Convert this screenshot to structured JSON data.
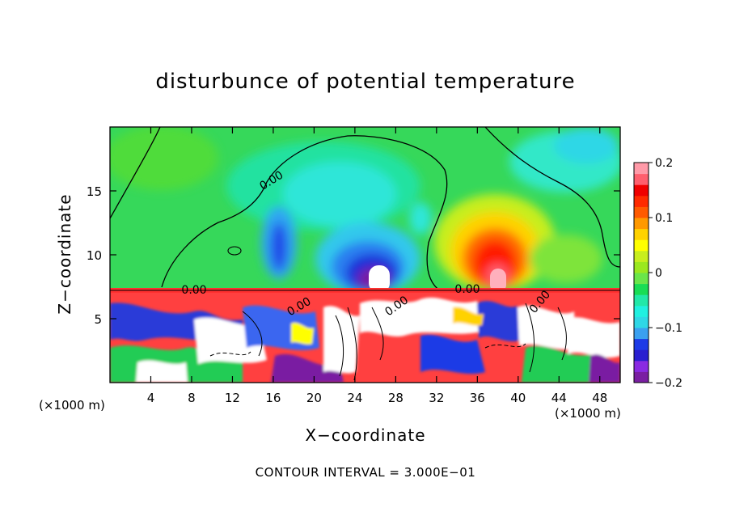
{
  "chart_data": {
    "type": "heatmap",
    "title": "disturbunce of potential temperature",
    "xlabel": "X−coordinate",
    "ylabel": "Z−coordinate",
    "x_unit": "(×1000 m)",
    "x_unit_right": "(×1000 m)",
    "xlim": [
      0,
      50
    ],
    "ylim": [
      0,
      20
    ],
    "xticks": [
      4,
      8,
      12,
      16,
      20,
      24,
      28,
      32,
      36,
      40,
      44,
      48
    ],
    "yticks": [
      5,
      10,
      15
    ],
    "colorbar": {
      "range": [
        -0.2,
        0.2
      ],
      "ticks": [
        {
          "value": 0.2,
          "label": "0.2"
        },
        {
          "value": 0.1,
          "label": "0.1"
        },
        {
          "value": 0,
          "label": "0"
        },
        {
          "value": -0.1,
          "label": "−0.1"
        },
        {
          "value": -0.2,
          "label": "−0.2"
        }
      ],
      "colors": [
        "#7a1fa2",
        "#8a2be2",
        "#2a1fd0",
        "#1d3be6",
        "#3aa0f0",
        "#2fd7e6",
        "#20f0e0",
        "#22e8a8",
        "#19dd55",
        "#6ae64a",
        "#9be81f",
        "#c8ee1e",
        "#ffff00",
        "#ffd200",
        "#ff9900",
        "#ff5a00",
        "#ff2a00",
        "#f00000",
        "#ff5f6e",
        "#ff9aa8"
      ]
    },
    "contour_labels": [
      "0.00",
      "0.00",
      "0.00",
      "0.00",
      "0.00",
      "0.00"
    ],
    "footer": "CONTOUR INTERVAL = 3.000E−01"
  }
}
